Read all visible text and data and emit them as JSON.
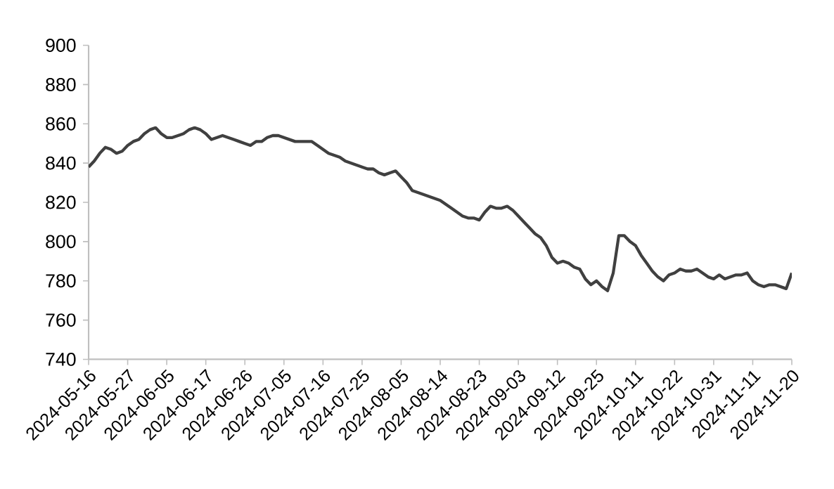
{
  "chart_data": {
    "type": "line",
    "categories": [
      "2024-05-16",
      null,
      null,
      null,
      null,
      null,
      null,
      "2024-05-27",
      null,
      null,
      null,
      null,
      null,
      null,
      "2024-06-05",
      null,
      null,
      null,
      null,
      null,
      null,
      "2024-06-17",
      null,
      null,
      null,
      null,
      null,
      null,
      "2024-06-26",
      null,
      null,
      null,
      null,
      null,
      null,
      "2024-07-05",
      null,
      null,
      null,
      null,
      null,
      null,
      "2024-07-16",
      null,
      null,
      null,
      null,
      null,
      null,
      "2024-07-25",
      null,
      null,
      null,
      null,
      null,
      null,
      "2024-08-05",
      null,
      null,
      null,
      null,
      null,
      null,
      "2024-08-14",
      null,
      null,
      null,
      null,
      null,
      null,
      "2024-08-23",
      null,
      null,
      null,
      null,
      null,
      null,
      "2024-09-03",
      null,
      null,
      null,
      null,
      null,
      null,
      "2024-09-12",
      null,
      null,
      null,
      null,
      null,
      null,
      "2024-09-25",
      null,
      null,
      null,
      null,
      null,
      null,
      "2024-10-11",
      null,
      null,
      null,
      null,
      null,
      null,
      "2024-10-22",
      null,
      null,
      null,
      null,
      null,
      null,
      "2024-10-31",
      null,
      null,
      null,
      null,
      null,
      null,
      "2024-11-11",
      null,
      null,
      null,
      null,
      null,
      null,
      "2024-11-20"
    ],
    "values": [
      838,
      841,
      845,
      848,
      847,
      845,
      846,
      849,
      851,
      852,
      855,
      857,
      858,
      855,
      853,
      853,
      854,
      855,
      857,
      858,
      857,
      855,
      852,
      853,
      854,
      853,
      852,
      851,
      850,
      849,
      851,
      851,
      853,
      854,
      854,
      853,
      852,
      851,
      851,
      851,
      851,
      849,
      847,
      845,
      844,
      843,
      841,
      840,
      839,
      838,
      837,
      837,
      835,
      834,
      835,
      836,
      833,
      830,
      826,
      825,
      824,
      823,
      822,
      821,
      819,
      817,
      815,
      813,
      812,
      812,
      811,
      815,
      818,
      817,
      817,
      818,
      816,
      813,
      810,
      807,
      804,
      802,
      798,
      792,
      789,
      790,
      789,
      787,
      786,
      781,
      778,
      780,
      777,
      775,
      784,
      803,
      803,
      800,
      798,
      793,
      789,
      785,
      782,
      780,
      783,
      784,
      786,
      785,
      785,
      786,
      784,
      782,
      781,
      783,
      781,
      782,
      783,
      783,
      784,
      780,
      778,
      777,
      778,
      778,
      777,
      776,
      784
    ],
    "color": "#404040",
    "ylim": [
      740,
      900
    ],
    "yticks": [
      740,
      760,
      780,
      800,
      820,
      840,
      860,
      880,
      900
    ]
  }
}
